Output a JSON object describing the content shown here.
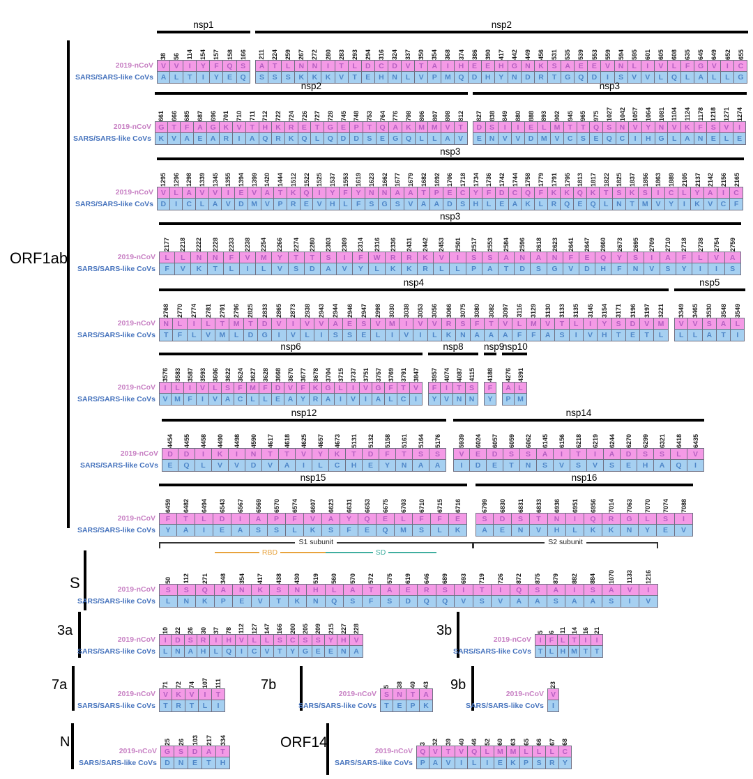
{
  "figure_title": "Amino acid variation between 2019-nCoV and SARS/SARS-like CoVs",
  "row_labels": {
    "ncov": "2019-nCoV",
    "sars": "SARS/SARS-like CoVs"
  },
  "groups": {
    "orf1ab": "ORF1ab",
    "s": "S",
    "a3": "3a",
    "b3": "3b",
    "a7": "7a",
    "b7": "7b",
    "b9": "9b",
    "n": "N",
    "orf14": "ORF14"
  },
  "s_annotations": {
    "s1": "S1 subunit",
    "s2": "S2 subunit",
    "rbd": "RBD",
    "sd": "SD"
  },
  "colors": {
    "ncov_fill": "#f49ae6",
    "ncov_text": "#b45fc1",
    "sars_fill": "#a6d0f1",
    "sars_text": "#4e86c8",
    "ncov_label": "#c77fc3",
    "sars_label": "#4673bd",
    "rbd": "#e8a33d",
    "sd": "#3fae9f",
    "bar": "#000000",
    "grid": "#6f6f82"
  },
  "blocks": {
    "nsp1": {
      "label": "nsp1",
      "positions": [
        38,
        56,
        114,
        154,
        157,
        158,
        166
      ],
      "ncov": "VVIYFQS",
      "sars": "ALTIYEQ"
    },
    "nsp2a": {
      "label": "nsp2",
      "positions": [
        211,
        224,
        259,
        267,
        272,
        280,
        283,
        293,
        294,
        316,
        324,
        337,
        350,
        354,
        368,
        374,
        386,
        390,
        417,
        442,
        449,
        456,
        531,
        535,
        539,
        553,
        559,
        594,
        595,
        601,
        605,
        608,
        635,
        645,
        649,
        652,
        655
      ],
      "ncov": "ATLNNITLDCDVTAIHEEHGNKSAEEVNLIVLFGVIC",
      "sars": "SSSKKKVTEHNLVPMQDHYNDRTGQDISVVLQLALLG"
    },
    "nsp2b": {
      "label": "nsp2",
      "positions": [
        661,
        666,
        685,
        687,
        696,
        701,
        710,
        711,
        712,
        722,
        724,
        726,
        727,
        728,
        745,
        748,
        753,
        764,
        776,
        798,
        806,
        807,
        808,
        812
      ],
      "ncov": "GTFAGKVTHKRETGEPTQAKMMVT",
      "sars": "KVAEARIAQRKQLQDDSEGQLLAV"
    },
    "nsp3a": {
      "label": "nsp3",
      "positions": [
        827,
        838,
        849,
        880,
        888,
        893,
        902,
        945,
        965,
        975,
        1027,
        1042,
        1057,
        1064,
        1081,
        1104,
        1124,
        1178,
        1218,
        1271,
        1274
      ],
      "ncov": "DSIIELMTTQSNVYNVKFSVI",
      "sars": "ENVVDMVCSEQCIHGLANELE"
    },
    "nsp3b": {
      "label": "nsp3",
      "positions": [
        1295,
        1296,
        1298,
        1339,
        1345,
        1355,
        1394,
        1399,
        1420,
        1444,
        1512,
        1522,
        1525,
        1537,
        1553,
        1619,
        1623,
        1662,
        1677,
        1679,
        1682,
        1692,
        1706,
        1718,
        1734,
        1736,
        1742,
        1744,
        1758,
        1779,
        1791,
        1795,
        1813,
        1817,
        1822,
        1825,
        1837,
        1856,
        1863,
        1889,
        2105,
        2137,
        2142,
        2156,
        2165
      ],
      "ncov": "VLAVVIEVATKQIYFYNNAATPECYFDCQFKKQKTSKSICLYAIC",
      "sars": "DICLAVDMVPREVHLFSGSVAADSHLEAKLRQEQLNTMVYIKVCF"
    },
    "nsp3c": {
      "label": "nsp3",
      "positions": [
        2177,
        2218,
        2222,
        2228,
        2233,
        2238,
        2254,
        2266,
        2274,
        2280,
        2303,
        2309,
        2314,
        2316,
        2336,
        2431,
        2442,
        2453,
        2501,
        2517,
        2553,
        2584,
        2596,
        2618,
        2623,
        2641,
        2647,
        2660,
        2673,
        2695,
        2709,
        2710,
        2718,
        2738,
        2754,
        2759
      ],
      "ncov": "LLNNFVMYTTSIFWRRKVISSANANFEQYSIAFLVA",
      "sars": "FVKTLILVSDAVYLKKRLLPATDSGVDHFNVSYIIS"
    },
    "nsp4": {
      "label": "nsp4",
      "positions": [
        2768,
        2770,
        2774,
        2781,
        2791,
        2796,
        2825,
        2833,
        2865,
        2873,
        2938,
        2943,
        2944,
        2946,
        2947,
        2998,
        3030,
        3038,
        3053,
        3056,
        3066,
        3075,
        3080,
        3082,
        3097,
        3116,
        3129,
        3130,
        3133,
        3135,
        3145,
        3154,
        3171,
        3196,
        3197,
        3221
      ],
      "ncov": "NLILTMTDVIVVAESVMIVVRSFTVLMVTLIYSDVM",
      "sars": "TFLVMLDGIVLISSELIVILKNAAAFFASIVHTETL"
    },
    "nsp5": {
      "label": "nsp5",
      "positions": [
        3349,
        3465,
        3530,
        3548,
        3549
      ],
      "ncov": "VVSAL",
      "sars": "LLATI"
    },
    "nsp6": {
      "label": "nsp6",
      "positions": [
        3576,
        3583,
        3587,
        3593,
        3606,
        3622,
        3624,
        3627,
        3628,
        3668,
        3670,
        3677,
        3678,
        3704,
        3715,
        3737,
        3751,
        3757,
        3769,
        3791,
        3847
      ],
      "ncov": "ILIVLSFMFDVFKGLIVGFTV",
      "sars": "VMFIVACLLEAYRAIVIALCI"
    },
    "nsp8": {
      "label": "nsp8",
      "positions": [
        3957,
        4074,
        4087,
        4115
      ],
      "ncov": "FITS",
      "sars": "YVNN"
    },
    "nsp9": {
      "label": "nsp9",
      "positions": [
        4188
      ],
      "ncov": "F",
      "sars": "Y"
    },
    "nsp10": {
      "label": "nsp10",
      "positions": [
        4276,
        4391
      ],
      "ncov": "AL",
      "sars": "PM"
    },
    "nsp12": {
      "label": "nsp12",
      "positions": [
        4454,
        4455,
        4458,
        4490,
        4498,
        4590,
        4617,
        4618,
        4625,
        4657,
        4673,
        5131,
        5132,
        5158,
        5161,
        5164,
        5176
      ],
      "ncov": "DDIKINTTVYKTDFTSS",
      "sars": "EQLVVDVAILCHEYNAA"
    },
    "nsp14": {
      "label": "nsp14",
      "positions": [
        5939,
        6024,
        6057,
        6059,
        6062,
        6145,
        6156,
        6218,
        6219,
        6244,
        6270,
        6299,
        6321,
        6418,
        6435
      ],
      "ncov": "VEDSSAITIADSSLV",
      "sars": "IDETNSVSVSEHAQI"
    },
    "nsp15": {
      "label": "nsp15",
      "positions": [
        6459,
        6482,
        6494,
        6543,
        6567,
        6569,
        6570,
        6574,
        6607,
        6623,
        6631,
        6653,
        6675,
        6703,
        6710,
        6715,
        6716
      ],
      "ncov": "FTLDIAPFVAYQELFFE",
      "sars": "YAIEASSLKSFEQMSLK"
    },
    "nsp16": {
      "label": "nsp16",
      "positions": [
        6799,
        6830,
        6831,
        6833,
        6936,
        6951,
        6956,
        7014,
        7063,
        7070,
        7074,
        7088
      ],
      "ncov": "SDSTNIQRGLSI",
      "sars": "AENVHLKKNYEV"
    },
    "s": {
      "label": "S",
      "positions": [
        50,
        112,
        271,
        348,
        354,
        417,
        438,
        430,
        519,
        560,
        570,
        572,
        575,
        619,
        646,
        689,
        693,
        719,
        726,
        872,
        875,
        879,
        882,
        884,
        1070,
        1133,
        1216
      ],
      "ncov": "SSQANKSNHLATAERSITIQSAISAVI",
      "sars": "LNKPEVTKNQSFSDQQVSVAASAASIV"
    },
    "orf3a": {
      "label": "3a",
      "positions": [
        10,
        22,
        26,
        30,
        37,
        78,
        112,
        127,
        147,
        166,
        200,
        205,
        209,
        215,
        227,
        228
      ],
      "ncov": "IDSRIHVLLSCSSYHV",
      "sars": "LNAHLQICVTYGEENA"
    },
    "orf3b": {
      "label": "3b",
      "positions": [
        5,
        6,
        11,
        14,
        16,
        21
      ],
      "ncov": "IFLTII",
      "sars": "TLHMTT"
    },
    "orf7a": {
      "label": "7a",
      "positions": [
        71,
        72,
        74,
        107,
        111
      ],
      "ncov": "VKVIT",
      "sars": "TRTLI"
    },
    "orf7b": {
      "label": "7b",
      "positions": [
        5,
        38,
        40,
        43
      ],
      "ncov": "SNTA",
      "sars": "TEPK"
    },
    "orf9b": {
      "label": "9b",
      "positions": [
        23
      ],
      "ncov": "V",
      "sars": "I"
    },
    "n": {
      "label": "N",
      "positions": [
        25,
        26,
        103,
        217,
        334
      ],
      "ncov": "GSDAT",
      "sars": "DNETH"
    },
    "orf14": {
      "label": "ORF14",
      "positions": [
        3,
        32,
        39,
        40,
        46,
        52,
        60,
        63,
        65,
        66,
        67,
        68
      ],
      "ncov": "QVTVQLMMLLLC",
      "sars": "PAVILIEKPSRY"
    }
  }
}
